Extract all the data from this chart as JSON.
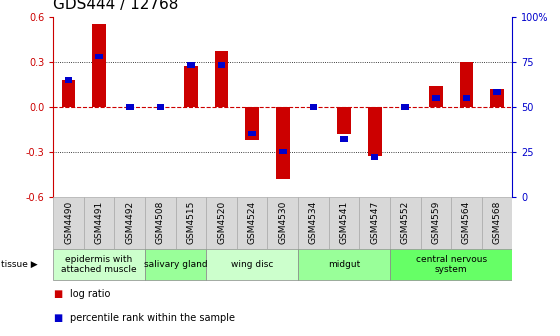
{
  "title": "GDS444 / 12768",
  "samples": [
    "GSM4490",
    "GSM4491",
    "GSM4492",
    "GSM4508",
    "GSM4515",
    "GSM4520",
    "GSM4524",
    "GSM4530",
    "GSM4534",
    "GSM4541",
    "GSM4547",
    "GSM4552",
    "GSM4559",
    "GSM4564",
    "GSM4568"
  ],
  "log_ratio": [
    0.18,
    0.55,
    0.0,
    0.0,
    0.27,
    0.37,
    -0.22,
    -0.48,
    0.0,
    -0.18,
    -0.33,
    0.0,
    0.14,
    0.3,
    0.12
  ],
  "percentile": [
    0.65,
    0.78,
    0.5,
    0.5,
    0.73,
    0.73,
    0.35,
    0.25,
    0.5,
    0.32,
    0.22,
    0.5,
    0.55,
    0.55,
    0.58
  ],
  "tissue_groups": [
    {
      "label": "epidermis with\nattached muscle",
      "start": 0,
      "end": 3,
      "color": "#ccffcc"
    },
    {
      "label": "salivary gland",
      "start": 3,
      "end": 5,
      "color": "#99ff99"
    },
    {
      "label": "wing disc",
      "start": 5,
      "end": 8,
      "color": "#ccffcc"
    },
    {
      "label": "midgut",
      "start": 8,
      "end": 11,
      "color": "#99ff99"
    },
    {
      "label": "central nervous\nsystem",
      "start": 11,
      "end": 15,
      "color": "#66ff66"
    }
  ],
  "ylim": [
    -0.6,
    0.6
  ],
  "yticks_left": [
    -0.6,
    -0.3,
    0.0,
    0.3,
    0.6
  ],
  "yticks_right_vals": [
    -0.6,
    -0.3,
    0.0,
    0.3,
    0.6
  ],
  "yticks_right_labels": [
    "0",
    "25",
    "50",
    "75",
    "100%"
  ],
  "bar_color_red": "#cc0000",
  "bar_color_blue": "#0000cc",
  "bar_width": 0.45,
  "blue_bar_width": 0.25,
  "blue_bar_height": 0.038,
  "zero_line_color": "#cc0000",
  "bg_color": "#ffffff",
  "sample_box_color": "#d8d8d8",
  "title_fontsize": 11,
  "tick_fontsize": 7,
  "sample_fontsize": 6.5,
  "tissue_fontsize": 6.5
}
